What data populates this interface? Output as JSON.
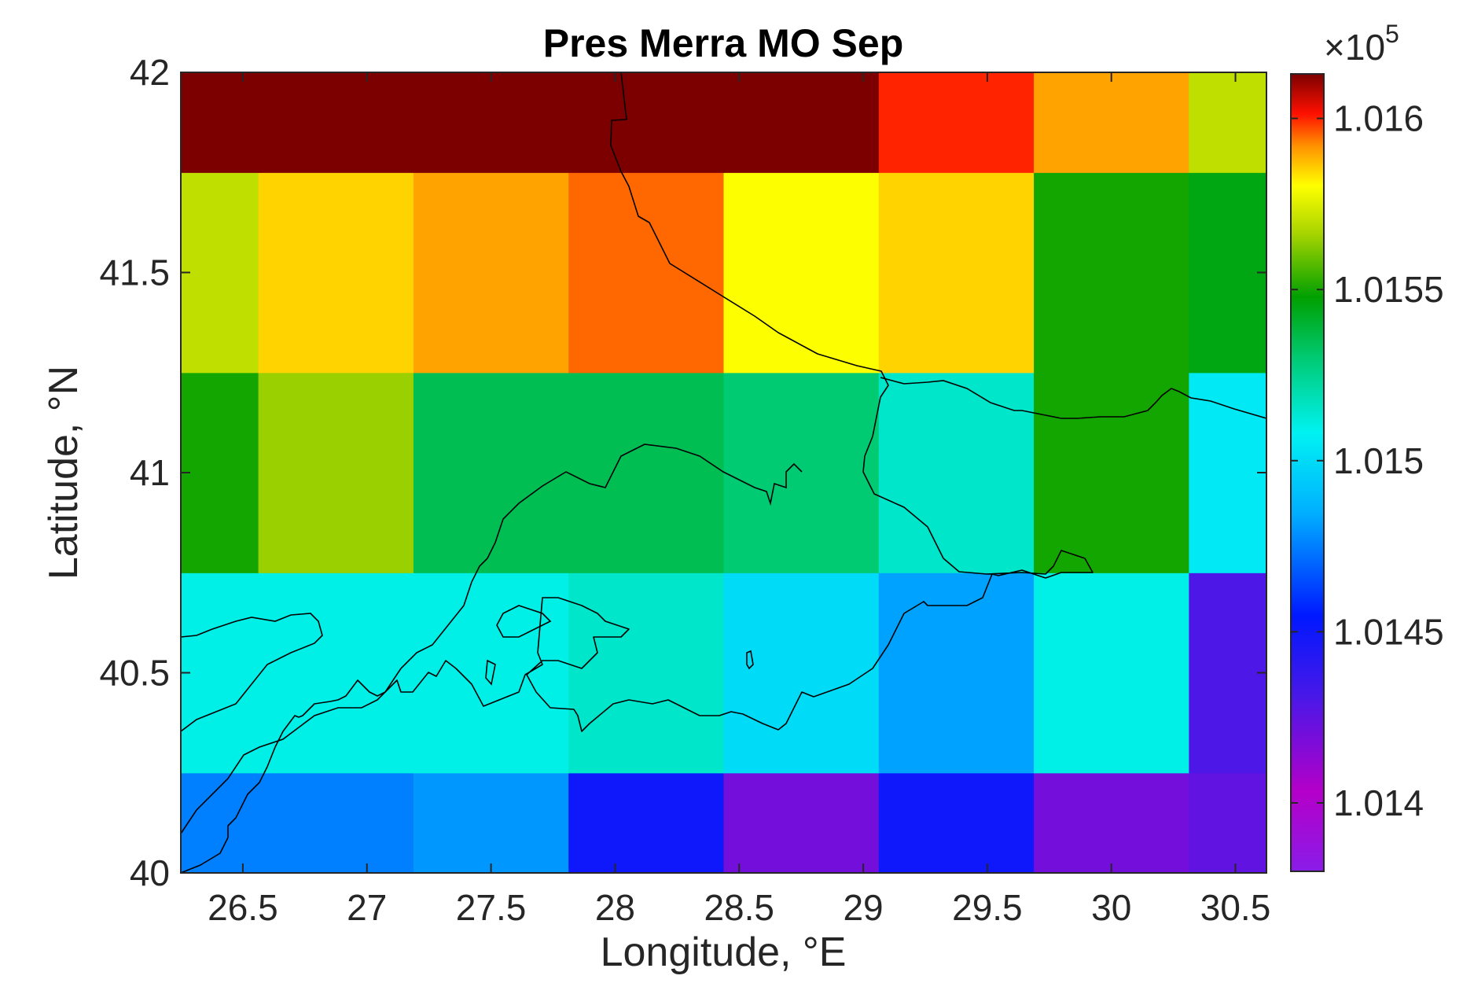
{
  "chart_data": {
    "type": "heatmap",
    "title": "Pres Merra MO Sep",
    "xlabel": "Longitude, °E",
    "ylabel": "Latitude, °N",
    "xlim": [
      26.25,
      30.625
    ],
    "ylim": [
      40,
      42
    ],
    "xticks": [
      "26.5",
      "27",
      "27.5",
      "28",
      "28.5",
      "29",
      "29.5",
      "30",
      "30.5"
    ],
    "yticks": [
      "40",
      "40.5",
      "41",
      "41.5",
      "42"
    ],
    "x_cell_edges": [
      26.25,
      26.5625,
      27.1875,
      27.8125,
      28.4375,
      29.0625,
      29.6875,
      30.3125,
      30.625
    ],
    "y_cell_edges": [
      40,
      40.25,
      40.75,
      41.25,
      41.75,
      42
    ],
    "z_values": [
      [
        101475,
        101475,
        101480,
        101450,
        101420,
        101450,
        101420,
        101425
      ],
      [
        101510,
        101510,
        101510,
        101515,
        101500,
        101482,
        101510,
        101430
      ],
      [
        101550,
        101565,
        101535,
        101535,
        101530,
        101515,
        101550,
        101505
      ],
      [
        101570,
        101585,
        101590,
        101595,
        101580,
        101585,
        101550,
        101545
      ],
      [
        101620,
        101615,
        101620,
        101620,
        101620,
        101600,
        101590,
        101570
      ]
    ],
    "colorbar": {
      "clim": [
        101380,
        101613
      ],
      "ticks": [
        "1.014",
        "1.0145",
        "1.015",
        "1.0155",
        "1.016"
      ],
      "tick_values": [
        101400,
        101450,
        101500,
        101550,
        101600
      ],
      "multiplier_text": "×10",
      "multiplier_exponent": "5",
      "colormap": "jet-like (purple-blue-cyan-green-yellow-red-dark red)"
    },
    "overlay": "coastline",
    "grid": false,
    "legend": "none"
  }
}
